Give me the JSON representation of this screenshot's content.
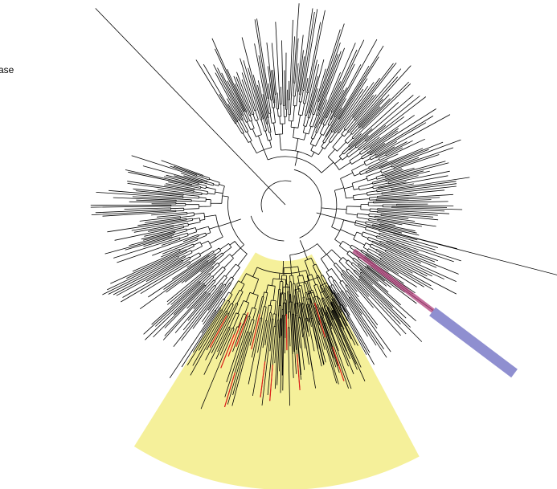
{
  "labels": [
    "ase"
  ]
}
